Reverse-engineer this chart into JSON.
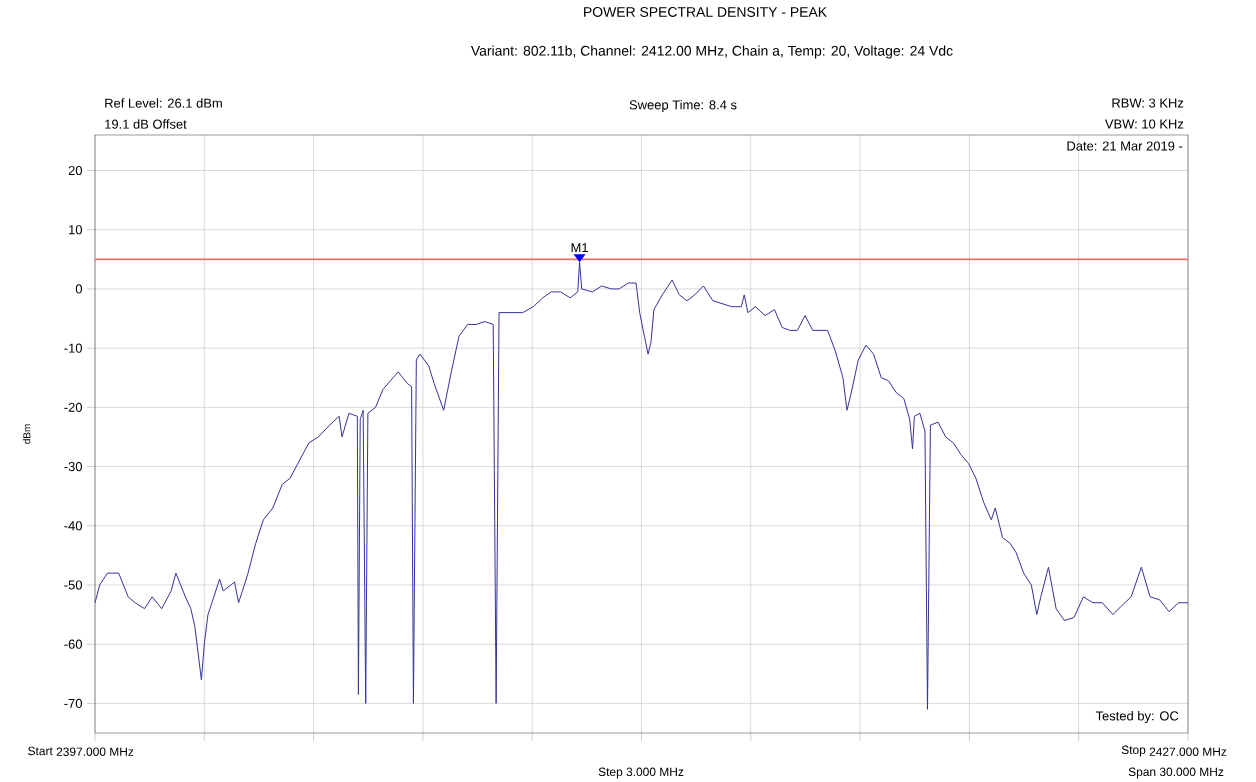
{
  "chart_data": {
    "type": "line",
    "title": "POWER SPECTRAL DENSITY - PEAK",
    "subtitle": "Variant: 802.11b, Channel: 2412.00 MHz, Chain a, Temp: 20, Voltage: 24 Vdc",
    "ylabel": "dBm",
    "annotations": [
      "Ref Level: 26.1 dBm",
      "19.1 dB Offset",
      "Sweep Time: 8.4 s",
      "RBW: 3 KHz",
      "VBW: 10 KHz",
      "Date: 21 Mar 2019 -",
      "Tested by: OC",
      "Step 3.000 MHz",
      "Span 30.000 MHz",
      "Start",
      "Stop",
      {
        "text": "M1",
        "x": 2410.3,
        "y": 4.5
      }
    ],
    "xlim": [
      2397,
      2427
    ],
    "ylim": [
      -75,
      26
    ],
    "xticks": [
      {
        "value": 2397,
        "label": "2397.000 MHz"
      },
      {
        "value": 2400,
        "label": null
      },
      {
        "value": 2403,
        "label": null
      },
      {
        "value": 2406,
        "label": null
      },
      {
        "value": 2409,
        "label": null
      },
      {
        "value": 2412,
        "label": null
      },
      {
        "value": 2415,
        "label": null
      },
      {
        "value": 2418,
        "label": null
      },
      {
        "value": 2421,
        "label": null
      },
      {
        "value": 2424,
        "label": null
      },
      {
        "value": 2427,
        "label": "2427.000 MHz"
      }
    ],
    "yticks": [
      -70,
      -60,
      -50,
      -40,
      -30,
      -20,
      -10,
      0,
      10,
      20
    ],
    "grid": true,
    "marker": "none",
    "line_style": "solid",
    "ref_lines": [
      {
        "axis": "y",
        "value": 5,
        "color": "#ff6b6b"
      }
    ],
    "series": [
      {
        "color": "#33339a",
        "x": [
          2397,
          2397.13,
          2397.34,
          2397.65,
          2397.91,
          2398.1,
          2398.36,
          2398.57,
          2398.83,
          2399.09,
          2399.22,
          2399.48,
          2399.63,
          2399.74,
          2399.84,
          2399.92,
          2400.0,
          2400.1,
          2400.21,
          2400.42,
          2400.52,
          2400.83,
          2400.94,
          2401.1,
          2401.2,
          2401.41,
          2401.62,
          2401.88,
          2402.14,
          2402.35,
          2402.61,
          2402.87,
          2403.13,
          2403.44,
          2403.7,
          2403.78,
          2403.97,
          2404.2,
          2404.23,
          2404.28,
          2404.36,
          2404.43,
          2404.49,
          2404.7,
          2404.9,
          2405.11,
          2405.32,
          2405.58,
          2405.69,
          2405.74,
          2405.82,
          2405.92,
          2406.16,
          2406.31,
          2406.57,
          2406.78,
          2406.99,
          2407.23,
          2407.46,
          2407.7,
          2407.93,
          2408.01,
          2408.09,
          2408.4,
          2408.74,
          2409.03,
          2409.29,
          2409.52,
          2409.78,
          2410.04,
          2410.25,
          2410.3,
          2410.36,
          2410.65,
          2410.91,
          2411.17,
          2411.38,
          2411.64,
          2411.85,
          2411.95,
          2412.08,
          2412.18,
          2412.26,
          2412.34,
          2412.57,
          2412.84,
          2413.04,
          2413.25,
          2413.46,
          2413.7,
          2413.96,
          2414.22,
          2414.48,
          2414.74,
          2414.82,
          2414.92,
          2415.13,
          2415.39,
          2415.65,
          2415.86,
          2416.07,
          2416.28,
          2416.49,
          2416.7,
          2416.91,
          2417.11,
          2417.32,
          2417.53,
          2417.64,
          2417.74,
          2417.95,
          2418.16,
          2418.37,
          2418.58,
          2418.78,
          2418.99,
          2419.2,
          2419.36,
          2419.44,
          2419.49,
          2419.64,
          2419.78,
          2419.85,
          2419.93,
          2420.14,
          2420.35,
          2420.56,
          2420.77,
          2420.98,
          2421.18,
          2421.39,
          2421.6,
          2421.71,
          2421.91,
          2422.12,
          2422.28,
          2422.49,
          2422.7,
          2422.85,
          2422.96,
          2423.17,
          2423.38,
          2423.61,
          2423.87,
          2424.13,
          2424.39,
          2424.65,
          2424.94,
          2425.18,
          2425.44,
          2425.72,
          2425.96,
          2426.22,
          2426.48,
          2426.74,
          2427.0
        ],
        "values": [
          -53,
          -50,
          -48,
          -48,
          -52,
          -53,
          -54,
          -52,
          -54,
          -51,
          -48,
          -52,
          -54,
          -57,
          -62,
          -66,
          -60,
          -55,
          -53,
          -49,
          -51,
          -49.5,
          -53,
          -50,
          -48,
          -43,
          -39,
          -37,
          -33,
          -32,
          -29,
          -26,
          -25,
          -23,
          -21.5,
          -25,
          -21,
          -21.5,
          -68.5,
          -22,
          -20.5,
          -70,
          -21,
          -20,
          -17,
          -15.5,
          -14,
          -16,
          -16.5,
          -70,
          -12,
          -11,
          -13,
          -16,
          -20.5,
          -14,
          -8,
          -6,
          -6,
          -5.5,
          -6,
          -70,
          -4,
          -4,
          -4,
          -3,
          -1.5,
          -0.5,
          -0.5,
          -1.5,
          -0.5,
          4.5,
          0,
          -0.5,
          0.5,
          0,
          0,
          1,
          1,
          -4,
          -8,
          -11,
          -9,
          -3.5,
          -1,
          1.5,
          -1,
          -2,
          -1,
          0.5,
          -2,
          -2.5,
          -3,
          -3,
          -1,
          -4,
          -3,
          -4.5,
          -3.5,
          -6.5,
          -7,
          -7,
          -4.5,
          -7,
          -7,
          -7,
          -10.5,
          -15,
          -20.5,
          -18,
          -12,
          -9.5,
          -11,
          -15,
          -15.5,
          -17.5,
          -18.5,
          -22,
          -27,
          -21.5,
          -21,
          -24,
          -71,
          -23,
          -22.5,
          -25,
          -26,
          -28,
          -29.5,
          -32,
          -36,
          -39,
          -37,
          -42,
          -43,
          -44.5,
          -48,
          -50,
          -55,
          -52,
          -47,
          -54,
          -56,
          -55.5,
          -52,
          -53,
          -53,
          -55,
          -53.5,
          -52,
          -47,
          -52,
          -52.5,
          -54.5,
          -53,
          -53
        ]
      }
    ]
  }
}
